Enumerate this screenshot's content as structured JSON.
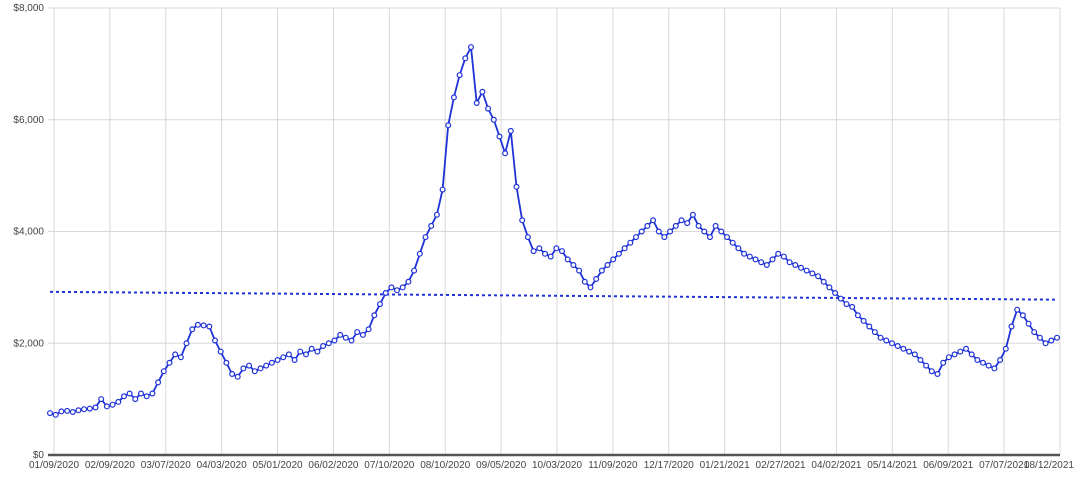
{
  "colors": {
    "series": "#1f32d8",
    "marker_fill": "#ffffff",
    "trend": "#1f32d8",
    "grid": "#d8d8d8",
    "axis": "#555555"
  },
  "chart_data": {
    "type": "line",
    "title": "",
    "xlabel": "",
    "ylabel": "",
    "ylim": [
      0,
      8000
    ],
    "y_ticks": [
      "$0",
      "$2,000",
      "$4,000",
      "$6,000",
      "$8,000"
    ],
    "y_tick_values": [
      0,
      2000,
      4000,
      6000,
      8000
    ],
    "x_ticks": [
      "01/09/2020",
      "02/09/2020",
      "03/07/2020",
      "04/03/2020",
      "05/01/2020",
      "06/02/2020",
      "07/10/2020",
      "08/10/2020",
      "09/05/2020",
      "10/03/2020",
      "11/09/2020",
      "12/17/2020",
      "01/21/2021",
      "02/27/2021",
      "04/02/2021",
      "05/14/2021",
      "06/09/2021",
      "07/07/2021",
      "08/12/2021"
    ],
    "grid": true,
    "legend": "none",
    "series": [
      {
        "values": [
          750,
          720,
          780,
          790,
          770,
          800,
          820,
          830,
          850,
          1000,
          870,
          900,
          950,
          1050,
          1100,
          1000,
          1100,
          1050,
          1100,
          1300,
          1500,
          1650,
          1800,
          1750,
          2000,
          2250,
          2330,
          2320,
          2300,
          2050,
          1850,
          1650,
          1450,
          1400,
          1550,
          1600,
          1500,
          1550,
          1600,
          1650,
          1700,
          1750,
          1800,
          1700,
          1850,
          1800,
          1900,
          1850,
          1950,
          2000,
          2050,
          2150,
          2100,
          2050,
          2200,
          2150,
          2250,
          2500,
          2700,
          2900,
          3000,
          2950,
          3000,
          3100,
          3300,
          3600,
          3900,
          4100,
          4300,
          4750,
          5900,
          6400,
          6800,
          7100,
          7300,
          6300,
          6500,
          6200,
          6000,
          5700,
          5400,
          5800,
          4800,
          4200,
          3900,
          3650,
          3700,
          3600,
          3550,
          3700,
          3650,
          3500,
          3400,
          3300,
          3100,
          3000,
          3150,
          3300,
          3400,
          3500,
          3600,
          3700,
          3800,
          3900,
          4000,
          4100,
          4200,
          4000,
          3900,
          4000,
          4100,
          4200,
          4150,
          4300,
          4100,
          4000,
          3900,
          4100,
          4000,
          3900,
          3800,
          3700,
          3600,
          3550,
          3500,
          3450,
          3400,
          3500,
          3600,
          3550,
          3450,
          3400,
          3350,
          3300,
          3250,
          3200,
          3100,
          3000,
          2900,
          2800,
          2700,
          2650,
          2500,
          2400,
          2300,
          2200,
          2100,
          2050,
          2000,
          1950,
          1900,
          1850,
          1800,
          1700,
          1600,
          1500,
          1450,
          1650,
          1750,
          1800,
          1850,
          1900,
          1800,
          1700,
          1650,
          1600,
          1550,
          1700,
          1900,
          2300,
          2600,
          2500,
          2350,
          2200,
          2100,
          2000,
          2050,
          2100
        ]
      }
    ],
    "trendline": {
      "start": 2920,
      "end": 2780
    }
  }
}
